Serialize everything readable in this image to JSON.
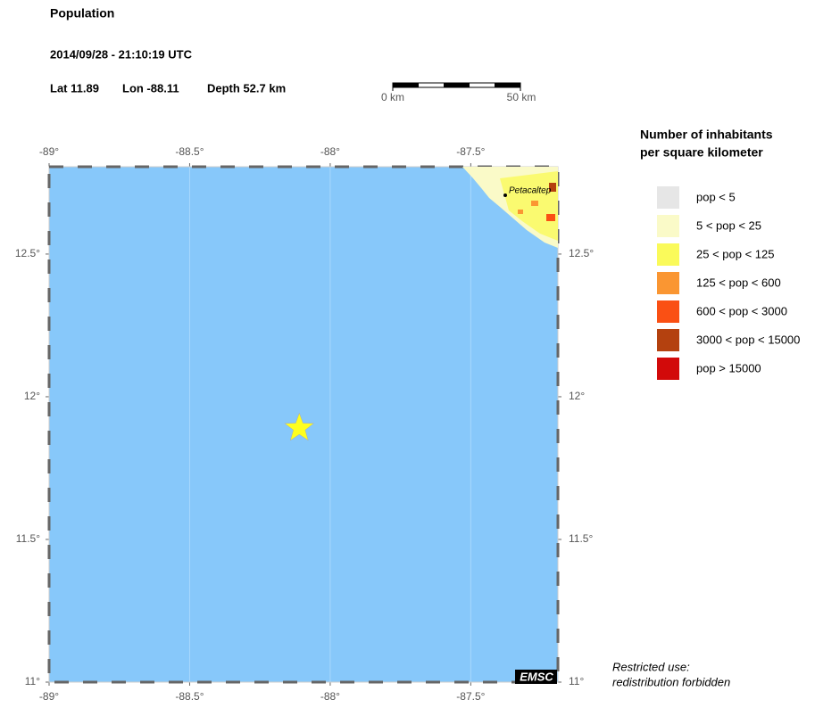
{
  "header": {
    "title": "Population",
    "datetime": "2014/09/28 - 21:10:19 UTC",
    "lat": "Lat 11.89",
    "lon": "Lon -88.11",
    "depth": "Depth  52.7 km"
  },
  "scale_bar": {
    "start": "0 km",
    "end": "50 km"
  },
  "map": {
    "xlim": [
      -89,
      -87.19
    ],
    "ylim": [
      11,
      12.806
    ],
    "xticks": [
      {
        "value": -89,
        "label": "-89°"
      },
      {
        "value": -88.5,
        "label": "-88.5°"
      },
      {
        "value": -88,
        "label": "-88°"
      },
      {
        "value": -87.5,
        "label": "-87.5°"
      }
    ],
    "yticks": [
      {
        "value": 11,
        "label": "11°"
      },
      {
        "value": 11.5,
        "label": "11.5°"
      },
      {
        "value": 12,
        "label": "12°"
      },
      {
        "value": 12.5,
        "label": "12.5°"
      }
    ],
    "sea_color": "#87c8fa",
    "event": {
      "lon": -88.11,
      "lat": 11.89,
      "color": "#ffff1e"
    },
    "city": "Petacaltep",
    "credit": "EMSC"
  },
  "legend": {
    "title": [
      "Number of inhabitants",
      "per square kilometer"
    ],
    "items": [
      {
        "label": "pop < 5",
        "color": "#e6e6e6"
      },
      {
        "label": "5 < pop < 25",
        "color": "#fafac8"
      },
      {
        "label": "25 < pop < 125",
        "color": "#fafa5a"
      },
      {
        "label": "125 < pop < 600",
        "color": "#fa9632"
      },
      {
        "label": "600 < pop < 3000",
        "color": "#fa5014"
      },
      {
        "label": "3000 < pop < 15000",
        "color": "#b4410f"
      },
      {
        "label": "pop > 15000",
        "color": "#d20a0a"
      }
    ]
  },
  "notice": [
    "Restricted use:",
    "redistribution forbidden"
  ]
}
